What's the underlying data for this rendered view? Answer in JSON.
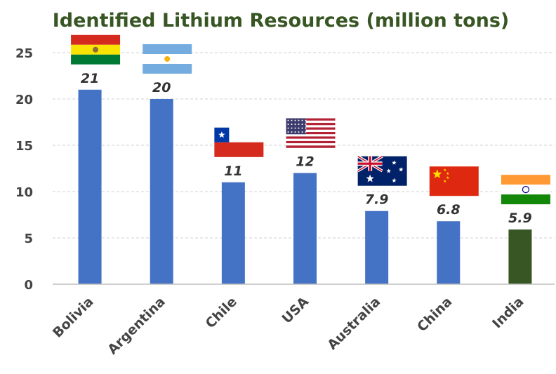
{
  "chart_data": {
    "type": "bar",
    "title": "Identified Lithium Resources (million tons)",
    "xlabel": "",
    "ylabel": "",
    "categories": [
      "Bolivia",
      "Argentina",
      "Chile",
      "USA",
      "Australia",
      "China",
      "India"
    ],
    "values": [
      21,
      20,
      11,
      12,
      7.9,
      6.8,
      5.9
    ],
    "data_labels": [
      "21",
      "20",
      "11",
      "12",
      "7.9",
      "6.8",
      "5.9"
    ],
    "ylim": [
      0,
      25
    ],
    "yticks": [
      0,
      5,
      10,
      15,
      20,
      25
    ],
    "grid": true,
    "legend": "none",
    "flag_icons": [
      "bolivia-flag-icon",
      "argentina-flag-icon",
      "chile-flag-icon",
      "usa-flag-icon",
      "australia-flag-icon",
      "china-flag-icon",
      "india-flag-icon"
    ],
    "bar_colors": [
      "#4472c4",
      "#4472c4",
      "#4472c4",
      "#4472c4",
      "#4472c4",
      "#4472c4",
      "#375623"
    ]
  },
  "colors": {
    "title": "#375623",
    "gridline": "#d9d9d9",
    "axis": "#bfbfbf"
  }
}
